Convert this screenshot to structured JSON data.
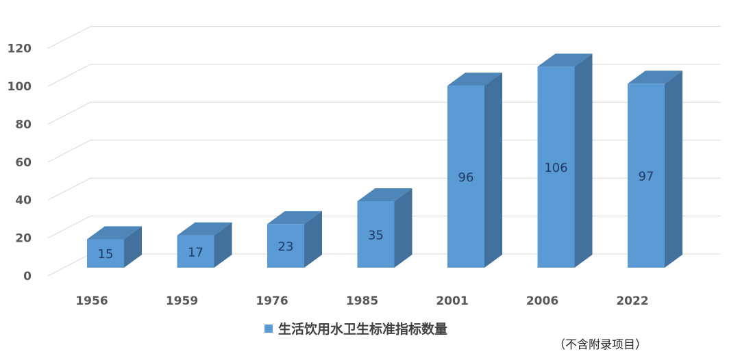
{
  "chart_data": {
    "type": "bar",
    "categories": [
      "1956",
      "1959",
      "1976",
      "1985",
      "2001",
      "2006",
      "2022"
    ],
    "series": [
      {
        "name": "生活饮用水卫生标准指标数量",
        "values": [
          15,
          17,
          23,
          35,
          96,
          106,
          97
        ]
      }
    ],
    "ylim": [
      0,
      120
    ],
    "yticks": [
      0,
      20,
      40,
      60,
      80,
      100,
      120
    ],
    "grid": true,
    "legend_position": "bottom",
    "colors": {
      "bar_front": "#5b9bd5",
      "bar_side": "#41719c",
      "bar_top": "#4e86b9",
      "grid": "#d9d9d9"
    }
  },
  "note": "（不含附录项目）"
}
